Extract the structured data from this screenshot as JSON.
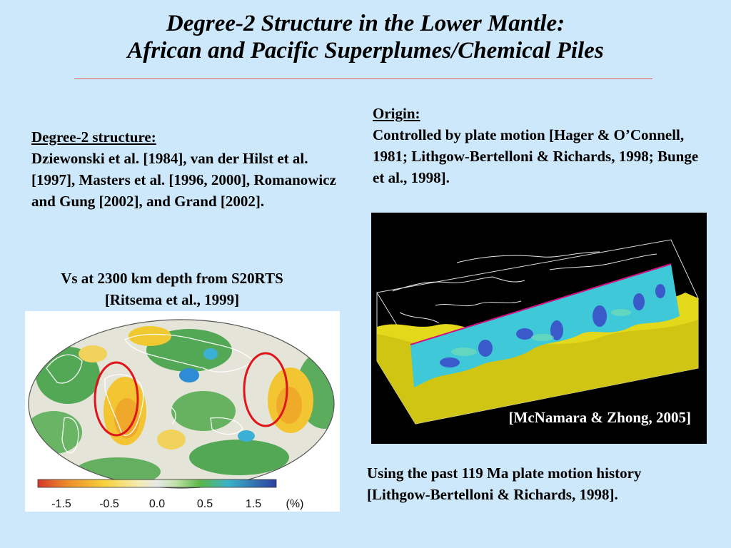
{
  "slide": {
    "title_line1": "Degree-2 Structure in the Lower Mantle:",
    "title_line2": "African and Pacific Superplumes/Chemical Piles",
    "degree2": {
      "heading": "Degree-2 structure:",
      "body": "Dziewonski et al. [1984], van der Hilst et al. [1997], Masters et al. [1996, 2000], Romanowicz and Gung [2002], and Grand [2002]."
    },
    "origin": {
      "heading": "Origin:",
      "body": "Controlled by plate motion [Hager & O’Connell, 1981; Lithgow-Bertelloni & Richards, 1998; Bunge et al., 1998]."
    },
    "map_caption_line1": "Vs at 2300 km depth from S20RTS",
    "map_caption_line2": "[Ritsema et al., 1999]",
    "colorbar": {
      "ticks": [
        "-1.5",
        "-0.5",
        "0.0",
        "0.5",
        "1.5"
      ],
      "unit": "(%)"
    },
    "sim_credit": "[McNamara & Zhong, 2005]",
    "bottom_caption_line1": "Using the past 119 Ma plate motion history",
    "bottom_caption_line2": "[Lithgow-Bertelloni & Richards, 1998]."
  },
  "colors": {
    "background": "#cce8fa",
    "title_rule": "#e06060",
    "highlight_ellipse": "#e0141b",
    "slow_anomaly": "#f2c634",
    "fast_anomaly": "#2f9a3a",
    "pile_yellow": "#e3d81a",
    "slice_cyan": "#3fc8d8"
  }
}
